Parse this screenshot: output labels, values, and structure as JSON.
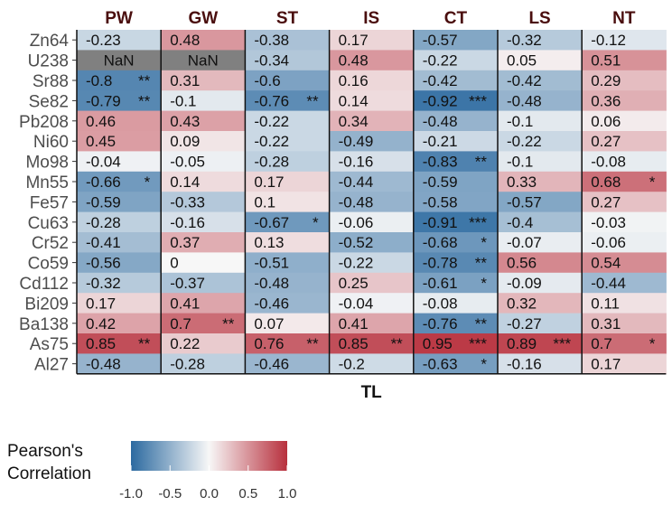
{
  "chart_data": {
    "type": "heatmap",
    "title": "",
    "xlabel": "TL",
    "ylabel": "",
    "columns": [
      "PW",
      "GW",
      "ST",
      "IS",
      "CT",
      "LS",
      "NT"
    ],
    "rows": [
      "Zn64",
      "U238",
      "Sr88",
      "Se82",
      "Pb208",
      "Ni60",
      "Mo98",
      "Mn55",
      "Fe57",
      "Cu63",
      "Cr52",
      "Co59",
      "Cd112",
      "Bi209",
      "Ba138",
      "As75",
      "Al27"
    ],
    "values": [
      [
        -0.23,
        0.48,
        -0.38,
        0.17,
        -0.57,
        -0.32,
        -0.12
      ],
      [
        null,
        null,
        -0.34,
        0.48,
        -0.22,
        0.05,
        0.51
      ],
      [
        -0.8,
        0.31,
        -0.6,
        0.16,
        -0.42,
        -0.42,
        0.29
      ],
      [
        -0.79,
        -0.1,
        -0.76,
        0.14,
        -0.92,
        -0.48,
        0.36
      ],
      [
        0.46,
        0.43,
        -0.22,
        0.34,
        -0.48,
        -0.1,
        0.06
      ],
      [
        0.45,
        0.09,
        -0.22,
        -0.49,
        -0.21,
        -0.22,
        0.27
      ],
      [
        -0.04,
        -0.05,
        -0.28,
        -0.16,
        -0.83,
        -0.1,
        -0.08
      ],
      [
        -0.66,
        0.14,
        0.17,
        -0.44,
        -0.59,
        0.33,
        0.68
      ],
      [
        -0.59,
        -0.33,
        0.1,
        -0.48,
        -0.58,
        -0.57,
        0.27
      ],
      [
        -0.28,
        -0.16,
        -0.67,
        -0.06,
        -0.91,
        -0.4,
        -0.03
      ],
      [
        -0.41,
        0.37,
        0.13,
        -0.52,
        -0.68,
        -0.07,
        -0.06
      ],
      [
        -0.56,
        0,
        -0.51,
        -0.22,
        -0.78,
        0.56,
        0.54
      ],
      [
        -0.32,
        -0.37,
        -0.48,
        0.25,
        -0.61,
        -0.09,
        -0.44
      ],
      [
        0.17,
        0.41,
        -0.46,
        -0.04,
        -0.08,
        0.32,
        0.11
      ],
      [
        0.42,
        0.7,
        0.07,
        0.41,
        -0.76,
        -0.27,
        0.31
      ],
      [
        0.85,
        0.22,
        0.76,
        0.85,
        0.95,
        0.89,
        0.7
      ],
      [
        -0.48,
        -0.28,
        -0.46,
        -0.2,
        -0.63,
        -0.16,
        0.17
      ]
    ],
    "labels": [
      [
        "-0.23",
        "0.48",
        "-0.38",
        "0.17",
        "-0.57",
        "-0.32",
        "-0.12"
      ],
      [
        "NaN",
        "NaN",
        "-0.34",
        "0.48",
        "-0.22",
        "0.05",
        "0.51"
      ],
      [
        "-0.8",
        "0.31",
        "-0.6",
        "0.16",
        "-0.42",
        "-0.42",
        "0.29"
      ],
      [
        "-0.79",
        "-0.1",
        "-0.76",
        "0.14",
        "-0.92",
        "-0.48",
        "0.36"
      ],
      [
        "0.46",
        "0.43",
        "-0.22",
        "0.34",
        "-0.48",
        "-0.1",
        "0.06"
      ],
      [
        "0.45",
        "0.09",
        "-0.22",
        "-0.49",
        "-0.21",
        "-0.22",
        "0.27"
      ],
      [
        "-0.04",
        "-0.05",
        "-0.28",
        "-0.16",
        "-0.83",
        "-0.1",
        "-0.08"
      ],
      [
        "-0.66",
        "0.14",
        "0.17",
        "-0.44",
        "-0.59",
        "0.33",
        "0.68"
      ],
      [
        "-0.59",
        "-0.33",
        "0.1",
        "-0.48",
        "-0.58",
        "-0.57",
        "0.27"
      ],
      [
        "-0.28",
        "-0.16",
        "-0.67",
        "-0.06",
        "-0.91",
        "-0.4",
        "-0.03"
      ],
      [
        "-0.41",
        "0.37",
        "0.13",
        "-0.52",
        "-0.68",
        "-0.07",
        "-0.06"
      ],
      [
        "-0.56",
        "0",
        "-0.51",
        "-0.22",
        "-0.78",
        "0.56",
        "0.54"
      ],
      [
        "-0.32",
        "-0.37",
        "-0.48",
        "0.25",
        "-0.61",
        "-0.09",
        "-0.44"
      ],
      [
        "0.17",
        "0.41",
        "-0.46",
        "-0.04",
        "-0.08",
        "0.32",
        "0.11"
      ],
      [
        "0.42",
        "0.7",
        "0.07",
        "0.41",
        "-0.76",
        "-0.27",
        "0.31"
      ],
      [
        "0.85",
        "0.22",
        "0.76",
        "0.85",
        "0.95",
        "0.89",
        "0.7"
      ],
      [
        "-0.48",
        "-0.28",
        "-0.46",
        "-0.2",
        "-0.63",
        "-0.16",
        "0.17"
      ]
    ],
    "significance": [
      [
        "",
        "",
        "",
        "",
        "",
        "",
        ""
      ],
      [
        "",
        "",
        "",
        "",
        "",
        "",
        ""
      ],
      [
        "**",
        "",
        "",
        "",
        "",
        "",
        ""
      ],
      [
        "**",
        "",
        "**",
        "",
        "***",
        "",
        ""
      ],
      [
        "",
        "",
        "",
        "",
        "",
        "",
        ""
      ],
      [
        "",
        "",
        "",
        "",
        "",
        "",
        ""
      ],
      [
        "",
        "",
        "",
        "",
        "**",
        "",
        ""
      ],
      [
        "*",
        "",
        "",
        "",
        "",
        "",
        "*"
      ],
      [
        "",
        "",
        "",
        "",
        "",
        "",
        ""
      ],
      [
        "",
        "",
        "*",
        "",
        "***",
        "",
        ""
      ],
      [
        "",
        "",
        "",
        "",
        "*",
        "",
        ""
      ],
      [
        "",
        "",
        "",
        "",
        "**",
        "",
        ""
      ],
      [
        "",
        "",
        "",
        "",
        "*",
        "",
        ""
      ],
      [
        "",
        "",
        "",
        "",
        "",
        "",
        ""
      ],
      [
        "",
        "**",
        "",
        "",
        "**",
        "",
        ""
      ],
      [
        "**",
        "",
        "**",
        "**",
        "***",
        "***",
        "*"
      ],
      [
        "",
        "",
        "",
        "",
        "*",
        "",
        ""
      ]
    ],
    "color_scale": {
      "low": "#2c6aa0",
      "mid": "#f7f7f7",
      "high": "#b8303d",
      "na": "#808080",
      "range": [
        -1,
        1
      ]
    },
    "legend": {
      "title_lines": [
        "Pearson's",
        "Correlation"
      ],
      "ticks": [
        "-1.0",
        "-0.5",
        "0.0",
        "0.5",
        "1.0"
      ],
      "tick_values": [
        -1,
        -0.5,
        0,
        0.5,
        1
      ],
      "placement": "bottom-left"
    }
  }
}
